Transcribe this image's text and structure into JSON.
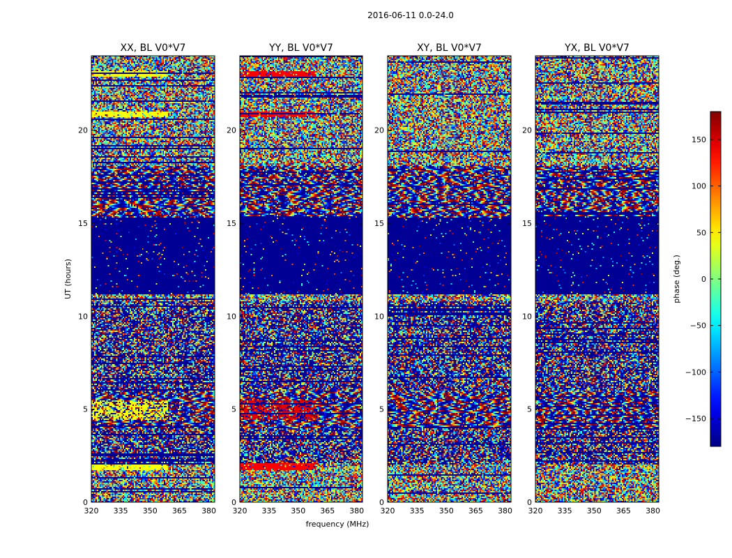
{
  "figure": {
    "suptitle": "2016-06-11 0.0-24.0"
  },
  "chart_data": [
    {
      "type": "heatmap",
      "title": "XX, BL V0*V7",
      "xlabel": "",
      "ylabel": "UT (hours)",
      "xlim": [
        320,
        383
      ],
      "ylim": [
        0,
        24
      ],
      "xticks": [
        320,
        335,
        350,
        365,
        380
      ],
      "yticks": [
        0,
        5,
        10,
        15,
        20
      ],
      "value": "phase (deg.)",
      "pattern": "xx"
    },
    {
      "type": "heatmap",
      "title": "YY, BL V0*V7",
      "xlabel": "frequency (MHz)",
      "ylabel": "",
      "xlim": [
        320,
        383
      ],
      "ylim": [
        0,
        24
      ],
      "xticks": [
        320,
        335,
        350,
        365,
        380
      ],
      "yticks": [
        0,
        5,
        10,
        15,
        20
      ],
      "value": "phase (deg.)",
      "pattern": "yy"
    },
    {
      "type": "heatmap",
      "title": "XY, BL V0*V7",
      "xlabel": "",
      "ylabel": "",
      "xlim": [
        320,
        383
      ],
      "ylim": [
        0,
        24
      ],
      "xticks": [
        320,
        335,
        350,
        365,
        380
      ],
      "yticks": [
        0,
        5,
        10,
        15,
        20
      ],
      "value": "phase (deg.)",
      "pattern": "xy"
    },
    {
      "type": "heatmap",
      "title": "YX, BL V0*V7",
      "xlabel": "",
      "ylabel": "",
      "xlim": [
        320,
        383
      ],
      "ylim": [
        0,
        24
      ],
      "xticks": [
        320,
        335,
        350,
        365,
        380
      ],
      "yticks": [
        0,
        5,
        10,
        15,
        20
      ],
      "value": "phase (deg.)",
      "pattern": "yx"
    }
  ],
  "colorbar": {
    "label": "phase (deg.)",
    "range": [
      -180,
      180
    ],
    "ticks": [
      150,
      100,
      50,
      0,
      -50,
      -100,
      -150
    ],
    "tick_labels": [
      "150",
      "100",
      "50",
      "0",
      "−50",
      "−100",
      "−150"
    ],
    "colormap": "jet"
  }
}
